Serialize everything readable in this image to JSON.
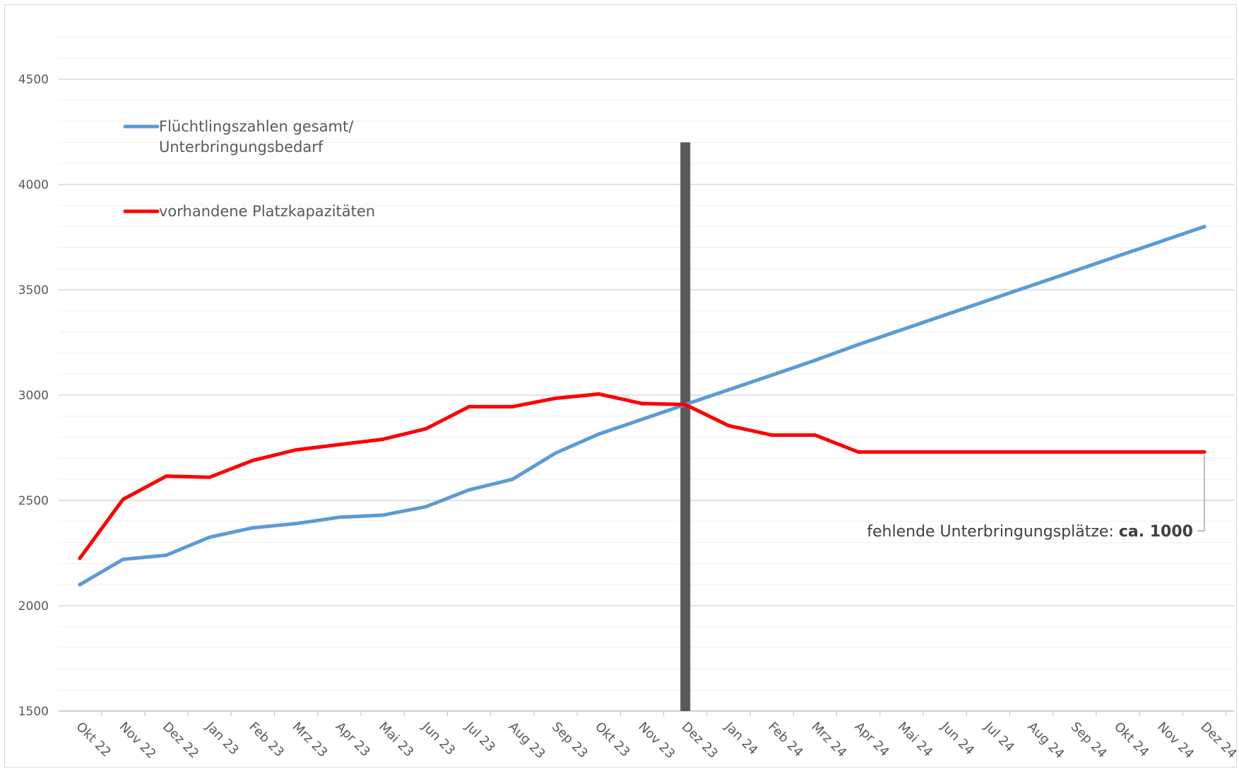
{
  "chart_data": {
    "type": "line",
    "categories": [
      "Okt 22",
      "Nov 22",
      "Dez 22",
      "Jan 23",
      "Feb 23",
      "Mrz 23",
      "Apr 23",
      "Mai 23",
      "Jun 23",
      "Jul 23",
      "Aug 23",
      "Sep 23",
      "Okt 23",
      "Nov 23",
      "Dez 23",
      "Jan 24",
      "Feb 24",
      "Mrz 24",
      "Apr 24",
      "Mai 24",
      "Jun 24",
      "Jul 24",
      "Aug 24",
      "Sep 24",
      "Okt 24",
      "Nov 24",
      "Dez 24"
    ],
    "series": [
      {
        "name_lines": [
          "Flüchtlingszahlen gesamt/",
          "Unterbringungsbedarf"
        ],
        "color": "#5b9bd5",
        "values": [
          2100,
          2220,
          2240,
          2325,
          2370,
          2390,
          2420,
          2430,
          2470,
          2550,
          2600,
          2725,
          2815,
          2885,
          2955,
          3025,
          3095,
          3165,
          3240,
          3310,
          3380,
          3450,
          3520,
          3590,
          3660,
          3730,
          3800
        ]
      },
      {
        "name_lines": [
          "vorhandene Platzkapazitäten"
        ],
        "color": "#ff0000",
        "values": [
          2225,
          2505,
          2615,
          2610,
          2690,
          2740,
          2765,
          2790,
          2840,
          2945,
          2945,
          2985,
          3005,
          2960,
          2955,
          2855,
          2810,
          2810,
          2730,
          2730,
          2730,
          2730,
          2730,
          2730,
          2730,
          2730,
          2730
        ]
      }
    ],
    "ylim": [
      1500,
      4700
    ],
    "yticks": [
      1500,
      2000,
      2500,
      3000,
      3500,
      4000,
      4500
    ],
    "grid": true,
    "legend_position": "top-left",
    "vertical_marker": {
      "category": "Dez 23",
      "from": 1500,
      "to": 4200,
      "color": "#595959"
    },
    "annotation": {
      "text": "fehlende Unterbringungsplätze: ",
      "bold": "ca. 1000",
      "category": "Dez 24",
      "value": 2730
    }
  }
}
